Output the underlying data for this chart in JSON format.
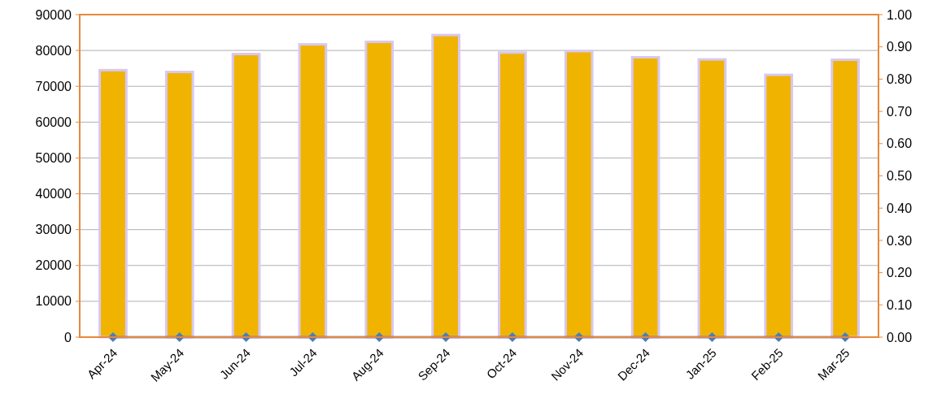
{
  "chart_data": {
    "type": "bar",
    "categories": [
      "Apr-24",
      "May-24",
      "Jun-24",
      "Jul-24",
      "Aug-24",
      "Sep-24",
      "Oct-24",
      "Nov-24",
      "Dec-24",
      "Jan-25",
      "Feb-25",
      "Mar-25"
    ],
    "series": [
      {
        "color": "#f0b400",
        "values": [
          74500,
          74000,
          79000,
          81700,
          82400,
          84300,
          79400,
          79800,
          78100,
          77500,
          73200,
          77400
        ]
      },
      {
        "type": "line",
        "axis": "y2",
        "color": "#1f3a8a",
        "values": [
          0,
          0,
          0,
          0,
          0,
          0,
          0,
          0,
          0,
          0,
          0,
          0
        ]
      }
    ],
    "ylim": [
      0,
      90000
    ],
    "yticks": [
      0,
      10000,
      20000,
      30000,
      40000,
      50000,
      60000,
      70000,
      80000,
      90000
    ],
    "y2lim": [
      0,
      1
    ],
    "y2ticks": [
      {
        "value": 0,
        "label": "0.00"
      },
      {
        "value": 0.1,
        "label": "0.10"
      },
      {
        "value": 0.2,
        "label": "0.20"
      },
      {
        "value": 0.3,
        "label": "0.30"
      },
      {
        "value": 0.4,
        "label": "0.40"
      },
      {
        "value": 0.5,
        "label": "0.50"
      },
      {
        "value": 0.6,
        "label": "0.60"
      },
      {
        "value": 0.7,
        "label": "0.70"
      },
      {
        "value": 0.8,
        "label": "0.80"
      },
      {
        "value": 0.9,
        "label": "0.90"
      },
      {
        "value": 1,
        "label": "1.00"
      }
    ],
    "grid": "y",
    "marker": "diamond"
  }
}
